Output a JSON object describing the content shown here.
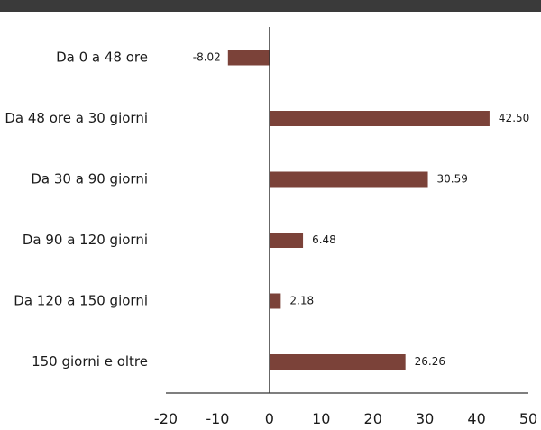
{
  "colors": {
    "bar": "#7b4239",
    "axis": "#333333",
    "top_rule": "#3a3a3a"
  },
  "chart_data": {
    "type": "bar",
    "orientation": "horizontal",
    "categories": [
      "Da 0 a 48 ore",
      "Da 48 ore a 30 giorni",
      "Da 30 a 90 giorni",
      "Da 90 a 120 giorni",
      "Da 120 a 150 giorni",
      "150 giorni e oltre"
    ],
    "values": [
      -8.02,
      42.5,
      30.59,
      6.48,
      2.18,
      26.26
    ],
    "value_labels": [
      "-8.02",
      "42.50",
      "30.59",
      "6.48",
      "2.18",
      "26.26"
    ],
    "xlim": [
      -20,
      50
    ],
    "xticks": [
      -20,
      -10,
      0,
      10,
      20,
      30,
      40,
      50
    ],
    "grid": false,
    "legend": "none"
  }
}
